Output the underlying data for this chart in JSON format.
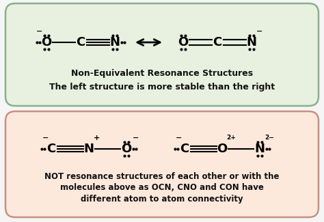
{
  "fig_width": 4.74,
  "fig_height": 3.25,
  "fig_dpi": 100,
  "bg_color": "#f5f5f5",
  "panel1_bg": "#e8f0e0",
  "panel1_border": "#8ab08a",
  "panel2_bg": "#fde8dc",
  "panel2_border": "#c89080",
  "panel1_label1": "Non-Equivalent Resonance Structures",
  "panel1_label2": "The left structure is more stable than the right",
  "panel2_label1": "NOT resonance structures of each other or with the",
  "panel2_label2": "molecules above as OCN, CNO and CON have",
  "panel2_label3": "different atom to atom connectivity",
  "text_color": "#111111",
  "atom_color": "#000000"
}
